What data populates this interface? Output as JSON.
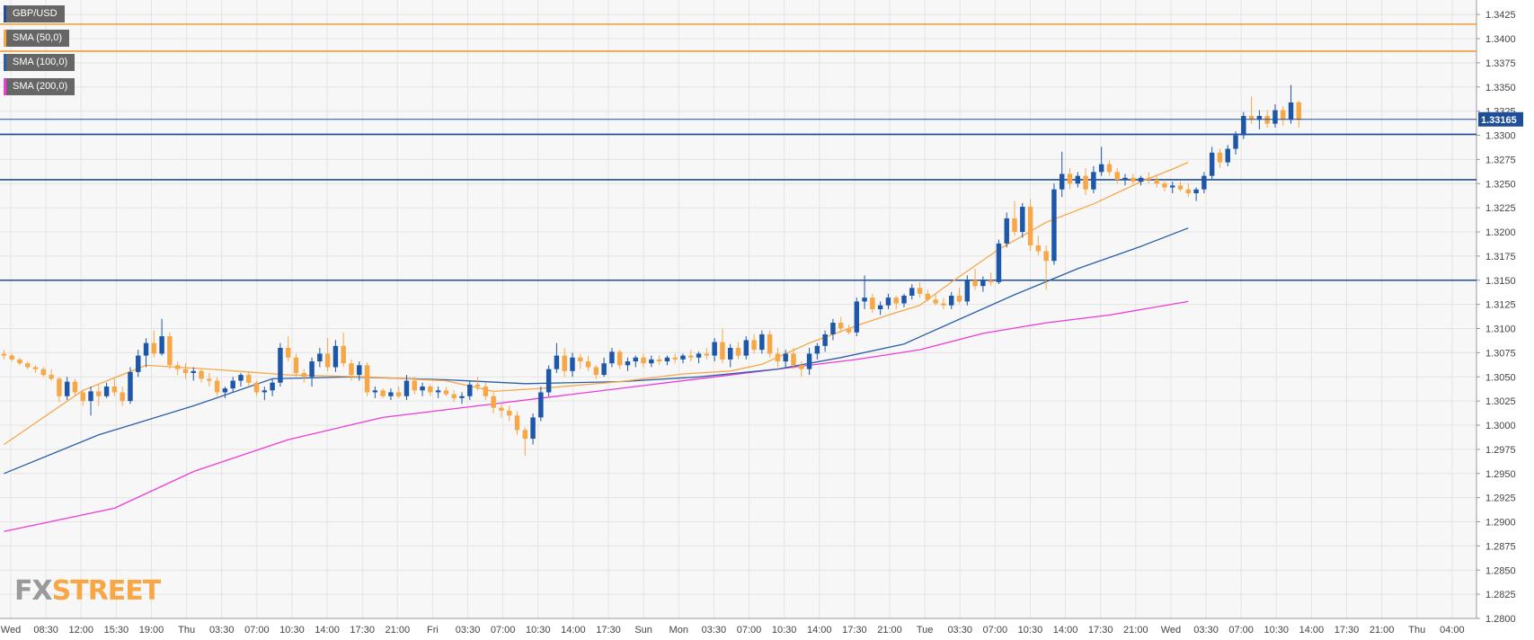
{
  "symbol": "GBP/USD",
  "logo": {
    "fx": "FX",
    "street": "STREET"
  },
  "colors": {
    "background": "#f7f7f7",
    "grid": "#e4e4e4",
    "bull": "#1e56a8",
    "bear": "#f7a745",
    "sma50": "#f7a745",
    "sma100": "#2a5fa8",
    "sma200": "#ee3ad8",
    "support": "#1f4e99",
    "resistance": "#f19a34",
    "price_label_bg": "#1f4e99"
  },
  "legend": [
    {
      "label": "GBP/USD",
      "color": "#1f4e99"
    },
    {
      "label": "SMA (50,0)",
      "color": "#f7a745"
    },
    {
      "label": "SMA (100,0)",
      "color": "#2a5fa8"
    },
    {
      "label": "SMA (200,0)",
      "color": "#ee3ad8"
    }
  ],
  "chart_data": {
    "type": "candlestick",
    "ylim": [
      1.28,
      1.344
    ],
    "y_ticks": [
      "1.3425",
      "1.3400",
      "1.3375",
      "1.3350",
      "1.3325",
      "1.3300",
      "1.3275",
      "1.3250",
      "1.3225",
      "1.3200",
      "1.3175",
      "1.3150",
      "1.3125",
      "1.3100",
      "1.3075",
      "1.3050",
      "1.3025",
      "1.3000",
      "1.2975",
      "1.2950",
      "1.2925",
      "1.2900",
      "1.2875",
      "1.2850",
      "1.2825",
      "1.2800"
    ],
    "x_ticks": [
      "Wed",
      "08:30",
      "12:00",
      "15:30",
      "19:00",
      "Thu",
      "03:30",
      "07:00",
      "10:30",
      "14:00",
      "17:30",
      "21:00",
      "Fri",
      "03:30",
      "07:00",
      "10:30",
      "14:00",
      "17:30",
      "Sun",
      "Mon",
      "03:30",
      "07:00",
      "10:30",
      "14:00",
      "17:30",
      "21:00",
      "Tue",
      "03:30",
      "07:00",
      "10:30",
      "14:00",
      "17:30",
      "21:00",
      "Wed",
      "03:30",
      "07:00",
      "10:30",
      "14:00",
      "17:30",
      "21:00",
      "Thu",
      "04:00"
    ],
    "last_price": "1.33165",
    "horizontal_levels": [
      {
        "value": 1.3415,
        "kind": "resistance"
      },
      {
        "value": 1.3387,
        "kind": "resistance"
      },
      {
        "value": 1.3301,
        "kind": "support"
      },
      {
        "value": 1.3254,
        "kind": "support"
      },
      {
        "value": 1.315,
        "kind": "support"
      }
    ],
    "sma50": [
      [
        0,
        1.298
      ],
      [
        10,
        1.3036
      ],
      [
        18,
        1.3062
      ],
      [
        26,
        1.3058
      ],
      [
        36,
        1.3052
      ],
      [
        46,
        1.305
      ],
      [
        56,
        1.3046
      ],
      [
        62,
        1.3035
      ],
      [
        68,
        1.3038
      ],
      [
        78,
        1.3045
      ],
      [
        86,
        1.3053
      ],
      [
        92,
        1.3056
      ],
      [
        96,
        1.3063
      ],
      [
        102,
        1.3085
      ],
      [
        108,
        1.3103
      ],
      [
        112,
        1.3114
      ],
      [
        116,
        1.3124
      ],
      [
        120,
        1.3148
      ],
      [
        126,
        1.3182
      ],
      [
        132,
        1.321
      ],
      [
        138,
        1.3229
      ],
      [
        144,
        1.3252
      ],
      [
        148,
        1.3265
      ],
      [
        150,
        1.3272
      ]
    ],
    "sma100": [
      [
        0,
        1.295
      ],
      [
        12,
        1.299
      ],
      [
        24,
        1.302
      ],
      [
        34,
        1.3048
      ],
      [
        44,
        1.305
      ],
      [
        56,
        1.3047
      ],
      [
        66,
        1.3043
      ],
      [
        78,
        1.3045
      ],
      [
        88,
        1.305
      ],
      [
        98,
        1.3058
      ],
      [
        106,
        1.307
      ],
      [
        114,
        1.3084
      ],
      [
        120,
        1.3106
      ],
      [
        128,
        1.3135
      ],
      [
        136,
        1.3162
      ],
      [
        144,
        1.3185
      ],
      [
        150,
        1.3204
      ]
    ],
    "sma200": [
      [
        0,
        1.289
      ],
      [
        14,
        1.2914
      ],
      [
        24,
        1.2952
      ],
      [
        36,
        1.2985
      ],
      [
        48,
        1.3008
      ],
      [
        60,
        1.302
      ],
      [
        70,
        1.303
      ],
      [
        80,
        1.304
      ],
      [
        90,
        1.305
      ],
      [
        100,
        1.306
      ],
      [
        108,
        1.3068
      ],
      [
        116,
        1.3078
      ],
      [
        124,
        1.3095
      ],
      [
        132,
        1.3106
      ],
      [
        140,
        1.3114
      ],
      [
        150,
        1.3128
      ]
    ],
    "candles": [
      [
        1.3074,
        1.3078,
        1.3068,
        1.3072
      ],
      [
        1.3072,
        1.3074,
        1.3066,
        1.3068
      ],
      [
        1.3068,
        1.307,
        1.3062,
        1.3064
      ],
      [
        1.3064,
        1.3066,
        1.3058,
        1.306
      ],
      [
        1.306,
        1.3062,
        1.3054,
        1.3058
      ],
      [
        1.3058,
        1.306,
        1.305,
        1.3052
      ],
      [
        1.3052,
        1.3058,
        1.3046,
        1.3048
      ],
      [
        1.3048,
        1.305,
        1.3024,
        1.303
      ],
      [
        1.303,
        1.305,
        1.3026,
        1.3045
      ],
      [
        1.3045,
        1.3048,
        1.303,
        1.3034
      ],
      [
        1.3034,
        1.3036,
        1.302,
        1.3025
      ],
      [
        1.3025,
        1.304,
        1.301,
        1.3035
      ],
      [
        1.3035,
        1.3042,
        1.302,
        1.303
      ],
      [
        1.303,
        1.3044,
        1.3028,
        1.304
      ],
      [
        1.304,
        1.3048,
        1.303,
        1.3034
      ],
      [
        1.3034,
        1.304,
        1.302,
        1.3025
      ],
      [
        1.3025,
        1.306,
        1.3022,
        1.3055
      ],
      [
        1.3055,
        1.3078,
        1.305,
        1.3072
      ],
      [
        1.3072,
        1.309,
        1.306,
        1.3085
      ],
      [
        1.3085,
        1.3098,
        1.307,
        1.3074
      ],
      [
        1.3074,
        1.311,
        1.3072,
        1.3092
      ],
      [
        1.3092,
        1.3096,
        1.3058,
        1.3062
      ],
      [
        1.3062,
        1.3066,
        1.3052,
        1.3058
      ],
      [
        1.3058,
        1.3064,
        1.3048,
        1.3054
      ],
      [
        1.3054,
        1.306,
        1.3046,
        1.3056
      ],
      [
        1.3056,
        1.3058,
        1.3044,
        1.3048
      ],
      [
        1.3048,
        1.3054,
        1.304,
        1.3046
      ],
      [
        1.3046,
        1.305,
        1.303,
        1.3034
      ],
      [
        1.3034,
        1.304,
        1.3028,
        1.3038
      ],
      [
        1.3038,
        1.305,
        1.3034,
        1.3046
      ],
      [
        1.3046,
        1.3054,
        1.304,
        1.3052
      ],
      [
        1.3052,
        1.3056,
        1.304,
        1.3044
      ],
      [
        1.3044,
        1.3046,
        1.303,
        1.3034
      ],
      [
        1.3034,
        1.304,
        1.3026,
        1.3036
      ],
      [
        1.3036,
        1.3048,
        1.303,
        1.3044
      ],
      [
        1.3044,
        1.3085,
        1.304,
        1.308
      ],
      [
        1.308,
        1.3092,
        1.3066,
        1.307
      ],
      [
        1.307,
        1.3074,
        1.305,
        1.3054
      ],
      [
        1.3054,
        1.3058,
        1.3044,
        1.305
      ],
      [
        1.305,
        1.307,
        1.304,
        1.3066
      ],
      [
        1.3066,
        1.308,
        1.306,
        1.3074
      ],
      [
        1.3074,
        1.309,
        1.3056,
        1.306
      ],
      [
        1.306,
        1.3088,
        1.3055,
        1.3082
      ],
      [
        1.3082,
        1.3096,
        1.306,
        1.3064
      ],
      [
        1.3064,
        1.3068,
        1.3046,
        1.3052
      ],
      [
        1.3052,
        1.3066,
        1.3046,
        1.3062
      ],
      [
        1.3062,
        1.3065,
        1.303,
        1.3034
      ],
      [
        1.3034,
        1.304,
        1.3028,
        1.3036
      ],
      [
        1.3036,
        1.3038,
        1.3028,
        1.303
      ],
      [
        1.303,
        1.3038,
        1.3026,
        1.3034
      ],
      [
        1.3034,
        1.304,
        1.3028,
        1.303
      ],
      [
        1.303,
        1.3052,
        1.3026,
        1.3046
      ],
      [
        1.3046,
        1.305,
        1.3032,
        1.3036
      ],
      [
        1.3036,
        1.3044,
        1.303,
        1.304
      ],
      [
        1.304,
        1.3042,
        1.303,
        1.3034
      ],
      [
        1.3034,
        1.304,
        1.3028,
        1.3036
      ],
      [
        1.3036,
        1.304,
        1.303,
        1.3032
      ],
      [
        1.3032,
        1.3036,
        1.3024,
        1.3028
      ],
      [
        1.3028,
        1.3034,
        1.3022,
        1.303
      ],
      [
        1.303,
        1.3046,
        1.3026,
        1.3042
      ],
      [
        1.3042,
        1.305,
        1.3036,
        1.304
      ],
      [
        1.304,
        1.3044,
        1.3026,
        1.303
      ],
      [
        1.303,
        1.3034,
        1.3012,
        1.3018
      ],
      [
        1.3018,
        1.3022,
        1.3008,
        1.3015
      ],
      [
        1.3015,
        1.302,
        1.3004,
        1.301
      ],
      [
        1.301,
        1.3014,
        1.299,
        1.2995
      ],
      [
        1.2995,
        1.2998,
        1.2968,
        1.2986
      ],
      [
        1.2986,
        1.3012,
        1.298,
        1.3008
      ],
      [
        1.3008,
        1.304,
        1.3004,
        1.3034
      ],
      [
        1.3034,
        1.3062,
        1.303,
        1.3058
      ],
      [
        1.3058,
        1.3085,
        1.3054,
        1.3072
      ],
      [
        1.3072,
        1.308,
        1.305,
        1.3056
      ],
      [
        1.3056,
        1.3075,
        1.305,
        1.307
      ],
      [
        1.307,
        1.3074,
        1.3058,
        1.3066
      ],
      [
        1.3066,
        1.3072,
        1.3056,
        1.306
      ],
      [
        1.306,
        1.3062,
        1.3048,
        1.3052
      ],
      [
        1.3052,
        1.307,
        1.305,
        1.3064
      ],
      [
        1.3064,
        1.308,
        1.306,
        1.3076
      ],
      [
        1.3076,
        1.3078,
        1.3058,
        1.3062
      ],
      [
        1.3062,
        1.307,
        1.3056,
        1.3066
      ],
      [
        1.3066,
        1.3072,
        1.306,
        1.307
      ],
      [
        1.307,
        1.3074,
        1.306,
        1.3064
      ],
      [
        1.3064,
        1.3072,
        1.306,
        1.3068
      ],
      [
        1.3068,
        1.3072,
        1.3062,
        1.3066
      ],
      [
        1.3066,
        1.3072,
        1.3062,
        1.307
      ],
      [
        1.307,
        1.3074,
        1.3064,
        1.3068
      ],
      [
        1.3068,
        1.3074,
        1.3064,
        1.3072
      ],
      [
        1.3072,
        1.3078,
        1.3066,
        1.307
      ],
      [
        1.307,
        1.3076,
        1.3064,
        1.3074
      ],
      [
        1.3074,
        1.308,
        1.3068,
        1.3072
      ],
      [
        1.3072,
        1.309,
        1.3066,
        1.3086
      ],
      [
        1.3086,
        1.31,
        1.3064,
        1.3068
      ],
      [
        1.3068,
        1.3084,
        1.306,
        1.308
      ],
      [
        1.308,
        1.3086,
        1.3068,
        1.3072
      ],
      [
        1.3072,
        1.3092,
        1.3068,
        1.3088
      ],
      [
        1.3088,
        1.3094,
        1.3074,
        1.3078
      ],
      [
        1.3078,
        1.3098,
        1.3074,
        1.3094
      ],
      [
        1.3094,
        1.3098,
        1.307,
        1.3074
      ],
      [
        1.3074,
        1.308,
        1.306,
        1.3066
      ],
      [
        1.3066,
        1.3078,
        1.306,
        1.3074
      ],
      [
        1.3074,
        1.308,
        1.3058,
        1.3062
      ],
      [
        1.3062,
        1.3066,
        1.305,
        1.3058
      ],
      [
        1.3058,
        1.308,
        1.3052,
        1.3074
      ],
      [
        1.3074,
        1.3085,
        1.3068,
        1.3082
      ],
      [
        1.3082,
        1.3098,
        1.3076,
        1.3094
      ],
      [
        1.3094,
        1.311,
        1.3088,
        1.3106
      ],
      [
        1.3106,
        1.3112,
        1.3096,
        1.31
      ],
      [
        1.31,
        1.3104,
        1.3094,
        1.3096
      ],
      [
        1.3096,
        1.3132,
        1.3092,
        1.3128
      ],
      [
        1.3128,
        1.3155,
        1.312,
        1.3132
      ],
      [
        1.3132,
        1.3136,
        1.3116,
        1.312
      ],
      [
        1.312,
        1.3128,
        1.3114,
        1.3124
      ],
      [
        1.3124,
        1.3136,
        1.312,
        1.3132
      ],
      [
        1.3132,
        1.3134,
        1.312,
        1.3126
      ],
      [
        1.3126,
        1.3136,
        1.3122,
        1.3134
      ],
      [
        1.3134,
        1.3146,
        1.313,
        1.3142
      ],
      [
        1.3142,
        1.3148,
        1.3132,
        1.3136
      ],
      [
        1.3136,
        1.314,
        1.3128,
        1.313
      ],
      [
        1.313,
        1.3136,
        1.3124,
        1.3126
      ],
      [
        1.3126,
        1.3132,
        1.312,
        1.3124
      ],
      [
        1.3124,
        1.3138,
        1.312,
        1.3134
      ],
      [
        1.3134,
        1.3142,
        1.3126,
        1.3128
      ],
      [
        1.3128,
        1.3155,
        1.3124,
        1.315
      ],
      [
        1.315,
        1.3162,
        1.314,
        1.3144
      ],
      [
        1.3144,
        1.3154,
        1.3138,
        1.315
      ],
      [
        1.315,
        1.3158,
        1.3144,
        1.3148
      ],
      [
        1.3148,
        1.3192,
        1.3146,
        1.3188
      ],
      [
        1.3188,
        1.322,
        1.3184,
        1.3214
      ],
      [
        1.3214,
        1.3232,
        1.3196,
        1.32
      ],
      [
        1.32,
        1.323,
        1.3194,
        1.3226
      ],
      [
        1.3226,
        1.3234,
        1.318,
        1.3186
      ],
      [
        1.3186,
        1.3196,
        1.3176,
        1.318
      ],
      [
        1.318,
        1.3186,
        1.314,
        1.317
      ],
      [
        1.317,
        1.325,
        1.3166,
        1.3244
      ],
      [
        1.3244,
        1.3283,
        1.3236,
        1.326
      ],
      [
        1.326,
        1.3266,
        1.3244,
        1.325
      ],
      [
        1.325,
        1.3262,
        1.3246,
        1.3258
      ],
      [
        1.3258,
        1.3266,
        1.3238,
        1.3244
      ],
      [
        1.3244,
        1.3268,
        1.324,
        1.3262
      ],
      [
        1.3262,
        1.3288,
        1.3258,
        1.327
      ],
      [
        1.327,
        1.3274,
        1.3258,
        1.3262
      ],
      [
        1.3262,
        1.3266,
        1.325,
        1.3254
      ],
      [
        1.3254,
        1.326,
        1.3248,
        1.3256
      ],
      [
        1.3256,
        1.326,
        1.325,
        1.3252
      ],
      [
        1.3252,
        1.3258,
        1.3248,
        1.3256
      ],
      [
        1.3256,
        1.3262,
        1.325,
        1.3254
      ],
      [
        1.3254,
        1.3258,
        1.3246,
        1.325
      ],
      [
        1.325,
        1.3254,
        1.3242,
        1.3246
      ],
      [
        1.3246,
        1.3252,
        1.324,
        1.3248
      ],
      [
        1.3248,
        1.3252,
        1.3242,
        1.3244
      ],
      [
        1.3244,
        1.325,
        1.3236,
        1.324
      ],
      [
        1.324,
        1.3246,
        1.3232,
        1.3244
      ],
      [
        1.3244,
        1.3262,
        1.324,
        1.3258
      ],
      [
        1.3258,
        1.3288,
        1.3254,
        1.3282
      ],
      [
        1.3282,
        1.3286,
        1.3266,
        1.3272
      ],
      [
        1.3272,
        1.329,
        1.3268,
        1.3286
      ],
      [
        1.3286,
        1.3304,
        1.328,
        1.33
      ],
      [
        1.33,
        1.3324,
        1.3296,
        1.332
      ],
      [
        1.332,
        1.334,
        1.3312,
        1.3316
      ],
      [
        1.3316,
        1.3326,
        1.3306,
        1.332
      ],
      [
        1.332,
        1.3326,
        1.3308,
        1.3312
      ],
      [
        1.3312,
        1.3332,
        1.3308,
        1.3326
      ],
      [
        1.3326,
        1.333,
        1.331,
        1.3316
      ],
      [
        1.3316,
        1.3352,
        1.3312,
        1.3334
      ],
      [
        1.3334,
        1.3336,
        1.3308,
        1.3316
      ]
    ]
  }
}
